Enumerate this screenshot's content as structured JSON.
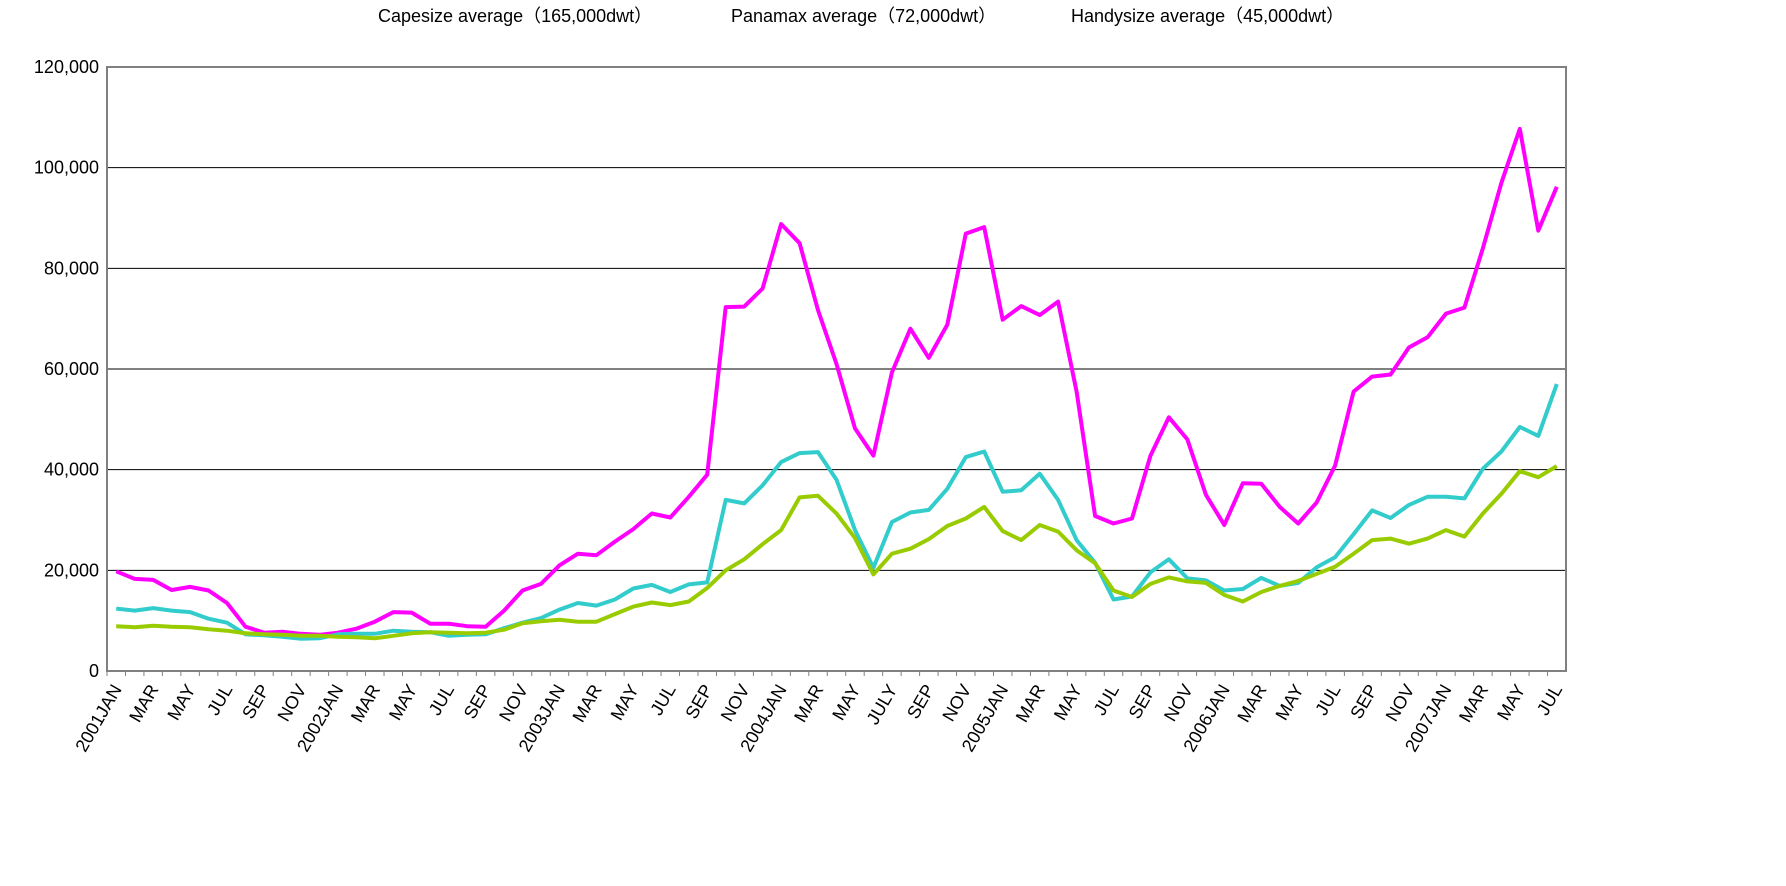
{
  "chart_data": {
    "type": "line",
    "categories": [
      "2001JAN",
      null,
      "MAR",
      null,
      "MAY",
      null,
      "JUL",
      null,
      "SEP",
      null,
      "NOV",
      null,
      "2002JAN",
      null,
      "MAR",
      null,
      "MAY",
      null,
      "JUL",
      null,
      "SEP",
      null,
      "NOV",
      null,
      "2003JAN",
      null,
      "MAR",
      null,
      "MAY",
      null,
      "JUL",
      null,
      "SEP",
      null,
      "NOV",
      null,
      "2004JAN",
      null,
      "MAR",
      null,
      "MAY",
      null,
      "JULY",
      null,
      "SEP",
      null,
      "NOV",
      null,
      "2005JAN",
      null,
      "MAR",
      null,
      "MAY",
      null,
      "JUL",
      null,
      "SEP",
      null,
      "NOV",
      null,
      "2006JAN",
      null,
      "MAR",
      null,
      "MAY",
      null,
      "JUL",
      null,
      "SEP",
      null,
      "NOV",
      null,
      "2007JAN",
      null,
      "MAR",
      null,
      "MAY",
      null,
      "JUL"
    ],
    "series": [
      {
        "name": "Capesize average（165,000dwt）",
        "color": "#ff00ff",
        "values": [
          19800,
          18300,
          18100,
          16100,
          16700,
          16000,
          13500,
          8800,
          7600,
          7800,
          7400,
          7200,
          7600,
          8400,
          9800,
          11700,
          11600,
          9400,
          9400,
          8900,
          8800,
          12000,
          16000,
          17300,
          21000,
          23300,
          23000,
          25700,
          28200,
          31300,
          30500,
          34600,
          39000,
          72300,
          72400,
          76000,
          88800,
          85000,
          71700,
          61000,
          48200,
          42800,
          59300,
          68000,
          62200,
          68800,
          86900,
          88200,
          69800,
          72500,
          70700,
          73400,
          55500,
          30800,
          29300,
          30300,
          42800,
          50400,
          46000,
          35000,
          29000,
          37300,
          37200,
          32600,
          29300,
          33500,
          40800,
          55500,
          58500,
          58900,
          64300,
          66300,
          71000,
          72200,
          84000,
          97000,
          107700,
          87500,
          96200
        ]
      },
      {
        "name": "Panamax average（72,000dwt）",
        "color": "#33cccc",
        "values": [
          12400,
          12000,
          12500,
          12000,
          11700,
          10400,
          9600,
          7300,
          7100,
          6800,
          6400,
          6500,
          7300,
          7400,
          7400,
          8000,
          7800,
          7700,
          7000,
          7200,
          7300,
          8500,
          9600,
          10500,
          12200,
          13500,
          13000,
          14200,
          16400,
          17100,
          15700,
          17200,
          17600,
          34000,
          33300,
          36900,
          41500,
          43300,
          43500,
          38000,
          28000,
          20500,
          29600,
          31500,
          32000,
          36200,
          42500,
          43600,
          35600,
          35900,
          39200,
          34000,
          26000,
          21500,
          14200,
          14800,
          19600,
          22200,
          18400,
          18000,
          16000,
          16300,
          18500,
          16900,
          17500,
          20600,
          22600,
          27200,
          31900,
          30400,
          33000,
          34600,
          34600,
          34300,
          40200,
          43600,
          48500,
          46700,
          57000
        ]
      },
      {
        "name": "Handysize average（45,000dwt）",
        "color": "#99cc00",
        "values": [
          8900,
          8700,
          9000,
          8800,
          8700,
          8300,
          8000,
          7500,
          7300,
          7200,
          7000,
          7000,
          6800,
          6700,
          6500,
          7000,
          7500,
          7700,
          7600,
          7500,
          7600,
          8200,
          9500,
          9900,
          10200,
          9800,
          9800,
          11300,
          12800,
          13600,
          13100,
          13800,
          16500,
          20000,
          22200,
          25200,
          28000,
          34500,
          34800,
          31300,
          26400,
          19200,
          23300,
          24300,
          26200,
          28800,
          30300,
          32600,
          27800,
          26000,
          29000,
          27700,
          24000,
          21400,
          16000,
          14700,
          17300,
          18600,
          17800,
          17500,
          15100,
          13800,
          15700,
          16900,
          17900,
          19300,
          20700,
          23300,
          26000,
          26300,
          25300,
          26300,
          28000,
          26700,
          31300,
          35200,
          39700,
          38500,
          40700
        ]
      }
    ],
    "ylim": [
      0,
      120000
    ],
    "yticks": [
      0,
      {
        "value": 20000,
        "label": "20,000"
      },
      {
        "value": 40000,
        "label": "40,000"
      },
      {
        "value": 60000,
        "label": "60,000"
      },
      {
        "value": 80000,
        "label": "80,000"
      },
      {
        "value": 100000,
        "label": "100,000"
      },
      {
        "value": 120000,
        "label": "120,000"
      }
    ],
    "grid": true
  }
}
